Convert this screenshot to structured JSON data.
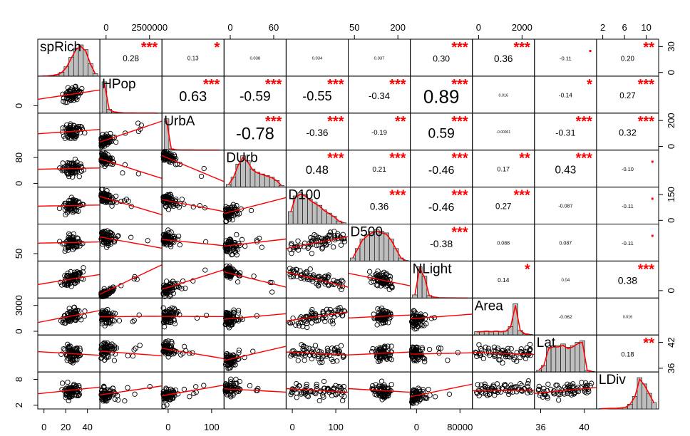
{
  "chart_data": {
    "type": "scatter",
    "subtype": "pairs-correlation-matrix",
    "variables": [
      "spRich",
      "HPop",
      "UrbA",
      "DUrb",
      "D100",
      "D500",
      "NLight",
      "Area",
      "Lat",
      "LDiv"
    ],
    "correlations": [
      {
        "i": 0,
        "j": 1,
        "r": "0.28",
        "sig": "***"
      },
      {
        "i": 0,
        "j": 2,
        "r": "0.13",
        "sig": "*"
      },
      {
        "i": 0,
        "j": 3,
        "r": "0.038",
        "sig": ""
      },
      {
        "i": 0,
        "j": 4,
        "r": "0.034",
        "sig": ""
      },
      {
        "i": 0,
        "j": 5,
        "r": "0.037",
        "sig": ""
      },
      {
        "i": 0,
        "j": 6,
        "r": "0.30",
        "sig": "***"
      },
      {
        "i": 0,
        "j": 7,
        "r": "0.36",
        "sig": "***"
      },
      {
        "i": 0,
        "j": 8,
        "r": "-0.11",
        "sig": "."
      },
      {
        "i": 0,
        "j": 9,
        "r": "0.20",
        "sig": "**"
      },
      {
        "i": 1,
        "j": 2,
        "r": "0.63",
        "sig": "***"
      },
      {
        "i": 1,
        "j": 3,
        "r": "-0.59",
        "sig": "***"
      },
      {
        "i": 1,
        "j": 4,
        "r": "-0.55",
        "sig": "***"
      },
      {
        "i": 1,
        "j": 5,
        "r": "-0.34",
        "sig": "***"
      },
      {
        "i": 1,
        "j": 6,
        "r": "0.89",
        "sig": "***"
      },
      {
        "i": 1,
        "j": 7,
        "r": "0.016",
        "sig": ""
      },
      {
        "i": 1,
        "j": 8,
        "r": "-0.14",
        "sig": "*"
      },
      {
        "i": 1,
        "j": 9,
        "r": "0.27",
        "sig": "***"
      },
      {
        "i": 2,
        "j": 3,
        "r": "-0.78",
        "sig": "***"
      },
      {
        "i": 2,
        "j": 4,
        "r": "-0.36",
        "sig": "***"
      },
      {
        "i": 2,
        "j": 5,
        "r": "-0.19",
        "sig": "**"
      },
      {
        "i": 2,
        "j": 6,
        "r": "0.59",
        "sig": "***"
      },
      {
        "i": 2,
        "j": 7,
        "r": "-0.00001",
        "sig": ""
      },
      {
        "i": 2,
        "j": 8,
        "r": "-0.31",
        "sig": "***"
      },
      {
        "i": 2,
        "j": 9,
        "r": "0.32",
        "sig": "***"
      },
      {
        "i": 3,
        "j": 4,
        "r": "0.48",
        "sig": "***"
      },
      {
        "i": 3,
        "j": 5,
        "r": "0.21",
        "sig": "***"
      },
      {
        "i": 3,
        "j": 6,
        "r": "-0.46",
        "sig": "***"
      },
      {
        "i": 3,
        "j": 7,
        "r": "0.17",
        "sig": "**"
      },
      {
        "i": 3,
        "j": 8,
        "r": "0.43",
        "sig": "***"
      },
      {
        "i": 3,
        "j": 9,
        "r": "-0.10",
        "sig": "."
      },
      {
        "i": 4,
        "j": 5,
        "r": "0.36",
        "sig": "***"
      },
      {
        "i": 4,
        "j": 6,
        "r": "-0.46",
        "sig": "***"
      },
      {
        "i": 4,
        "j": 7,
        "r": "0.27",
        "sig": "***"
      },
      {
        "i": 4,
        "j": 8,
        "r": "-0.087",
        "sig": ""
      },
      {
        "i": 4,
        "j": 9,
        "r": "-0.11",
        "sig": "."
      },
      {
        "i": 5,
        "j": 6,
        "r": "-0.38",
        "sig": "***"
      },
      {
        "i": 5,
        "j": 7,
        "r": "0.088",
        "sig": ""
      },
      {
        "i": 5,
        "j": 8,
        "r": "0.087",
        "sig": ""
      },
      {
        "i": 5,
        "j": 9,
        "r": "-0.11",
        "sig": "."
      },
      {
        "i": 6,
        "j": 7,
        "r": "0.14",
        "sig": "*"
      },
      {
        "i": 6,
        "j": 8,
        "r": "0.04",
        "sig": ""
      },
      {
        "i": 6,
        "j": 9,
        "r": "0.38",
        "sig": "***"
      },
      {
        "i": 7,
        "j": 8,
        "r": "-0.062",
        "sig": ""
      },
      {
        "i": 7,
        "j": 9,
        "r": "0.016",
        "sig": ""
      },
      {
        "i": 8,
        "j": 9,
        "r": "0.18",
        "sig": "**"
      }
    ],
    "axes": {
      "top": [
        {
          "var": 1,
          "labels": [
            "0",
            "2500000"
          ]
        },
        {
          "var": 3,
          "labels": [
            "0",
            "60"
          ]
        },
        {
          "var": 5,
          "labels": [
            "50",
            "200"
          ]
        },
        {
          "var": 7,
          "labels": [
            "0",
            "2000"
          ]
        },
        {
          "var": 9,
          "labels": [
            "2",
            "6",
            "10"
          ]
        }
      ],
      "bottom": [
        {
          "var": 0,
          "labels": [
            "0",
            "20",
            "40"
          ]
        },
        {
          "var": 2,
          "labels": [
            "0",
            "100"
          ]
        },
        {
          "var": 4,
          "labels": [
            "0",
            "100"
          ]
        },
        {
          "var": 6,
          "labels": [
            "0",
            "80000"
          ]
        },
        {
          "var": 8,
          "labels": [
            "36",
            "40"
          ]
        }
      ],
      "left": [
        {
          "var": 1,
          "labels": [
            "0"
          ]
        },
        {
          "var": 3,
          "labels": [
            "0",
            "80"
          ]
        },
        {
          "var": 5,
          "labels": [
            "50"
          ]
        },
        {
          "var": 7,
          "labels": [
            "0",
            "3000"
          ]
        },
        {
          "var": 9,
          "labels": [
            "2",
            "8"
          ]
        }
      ],
      "right": [
        {
          "var": 0,
          "labels": [
            "0",
            "30"
          ]
        },
        {
          "var": 2,
          "labels": [
            "0",
            "200"
          ]
        },
        {
          "var": 4,
          "labels": [
            "0",
            "150"
          ]
        },
        {
          "var": 6,
          "labels": [
            "0"
          ]
        },
        {
          "var": 8,
          "labels": [
            "36",
            "42"
          ]
        }
      ]
    },
    "histograms": [
      [
        0.5,
        1,
        2,
        5,
        12,
        30,
        60,
        90,
        100,
        85,
        40,
        8
      ],
      [
        100,
        12,
        4,
        2,
        1,
        0.5,
        0.5,
        0.3,
        0.3,
        0.2,
        0.2,
        0.1
      ],
      [
        100,
        4,
        1,
        0.5,
        0.3,
        0.2,
        0.1,
        0.1,
        0.1,
        0.05,
        0.05,
        0.05
      ],
      [
        8,
        30,
        70,
        95,
        80,
        55,
        45,
        40,
        35,
        30,
        20,
        5
      ],
      [
        40,
        90,
        100,
        95,
        80,
        70,
        60,
        45,
        35,
        25,
        10,
        4
      ],
      [
        10,
        40,
        70,
        85,
        95,
        100,
        95,
        90,
        70,
        40,
        10,
        2
      ],
      [
        10,
        100,
        70,
        8,
        3,
        1,
        0.5,
        0.3,
        0.2,
        0.1,
        0.1,
        0.1
      ],
      [
        6,
        6,
        7,
        6,
        7,
        6,
        7,
        15,
        55,
        8,
        2,
        1
      ],
      [
        6,
        20,
        75,
        80,
        80,
        85,
        75,
        80,
        90,
        95,
        5,
        2
      ],
      [
        1,
        1,
        2,
        2,
        3,
        5,
        15,
        40,
        100,
        80,
        50,
        20
      ]
    ],
    "colors": {
      "points": "#000000",
      "smooth_line": "#ff0000",
      "histogram_fill": "#bebebe",
      "density_line": "#ff0000",
      "significance": "#ff0000"
    },
    "grid": false
  }
}
